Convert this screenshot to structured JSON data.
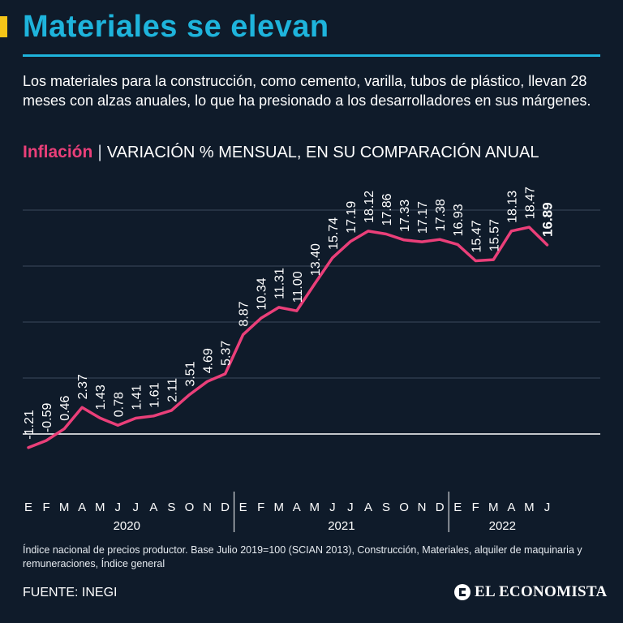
{
  "header": {
    "title": "Materiales se elevan",
    "subtitle": "Los materiales para la construcción, como cemento, varilla, tubos de plástico, llevan 28 meses con alzas anuales, lo que ha presionado a los desarrolladores en sus márgenes."
  },
  "chart_heading": {
    "keyword": "Inflación",
    "separator": "|",
    "description": "VARIACIÓN % MENSUAL, EN SU COMPARACIÓN ANUAL"
  },
  "chart_data": {
    "type": "line",
    "title": "Inflación",
    "subtitle": "VARIACIÓN % MENSUAL, EN SU COMPARACIÓN ANUAL",
    "xlabel": "",
    "ylabel": "",
    "ylim": [
      -2,
      22
    ],
    "gridlines": [
      5,
      10,
      15,
      20
    ],
    "zero_line": true,
    "line_color": "#ea3f79",
    "months": [
      "E",
      "F",
      "M",
      "A",
      "M",
      "J",
      "J",
      "A",
      "S",
      "O",
      "N",
      "D",
      "E",
      "F",
      "M",
      "A",
      "M",
      "J",
      "J",
      "A",
      "S",
      "O",
      "N",
      "D",
      "E",
      "F",
      "M",
      "A",
      "M",
      "J"
    ],
    "years": [
      {
        "label": "2020",
        "start": 0,
        "end": 11
      },
      {
        "label": "2021",
        "start": 12,
        "end": 23
      },
      {
        "label": "2022",
        "start": 24,
        "end": 29
      }
    ],
    "values": [
      -1.21,
      -0.59,
      0.46,
      2.37,
      1.43,
      0.78,
      1.41,
      1.61,
      2.11,
      3.51,
      4.69,
      5.37,
      8.87,
      10.34,
      11.31,
      11.0,
      13.4,
      15.74,
      17.19,
      18.12,
      17.86,
      17.33,
      17.17,
      17.38,
      16.93,
      15.47,
      15.57,
      18.13,
      18.47,
      16.89
    ],
    "labels": [
      "-1.21",
      "-0.59",
      "0.46",
      "2.37",
      "1.43",
      "0.78",
      "1.41",
      "1.61",
      "2.11",
      "3.51",
      "4.69",
      "5.37",
      "8.87",
      "10.34",
      "11.31",
      "11.00",
      "13.40",
      "15.74",
      "17.19",
      "18.12",
      "17.86",
      "17.33",
      "17.17",
      "17.38",
      "16.93",
      "15.47",
      "15.57",
      "18.13",
      "18.47",
      "16.89"
    ],
    "highlight_last": true
  },
  "footnote": "Índice nacional de precios productor. Base Julio 2019=100 (SCIAN 2013), Construcción, Materiales, alquiler de maquinaria y remuneraciones, Índice general",
  "source": "FUENTE: INEGI",
  "logo": "EL ECONOMISTA",
  "colors": {
    "background": "#0f1b2a",
    "title": "#1eb4dc",
    "accent": "#f5c518",
    "line": "#ea3f79"
  }
}
